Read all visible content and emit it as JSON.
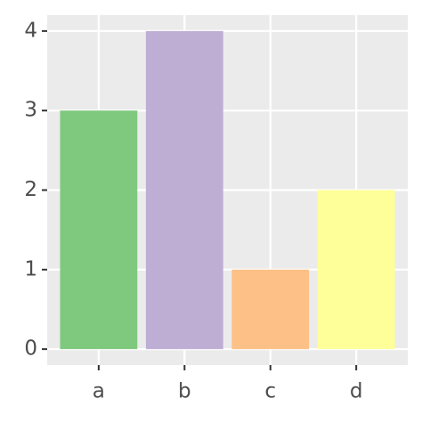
{
  "chart_data": {
    "type": "bar",
    "categories": [
      "a",
      "b",
      "c",
      "d"
    ],
    "values": [
      3,
      4,
      1,
      2
    ],
    "colors": [
      "#7fc97f",
      "#beaed4",
      "#fdc086",
      "#ffff99"
    ],
    "ylim": [
      -0.2,
      4.2
    ],
    "yticks": [
      0,
      1,
      2,
      3,
      4
    ],
    "grid": true
  }
}
